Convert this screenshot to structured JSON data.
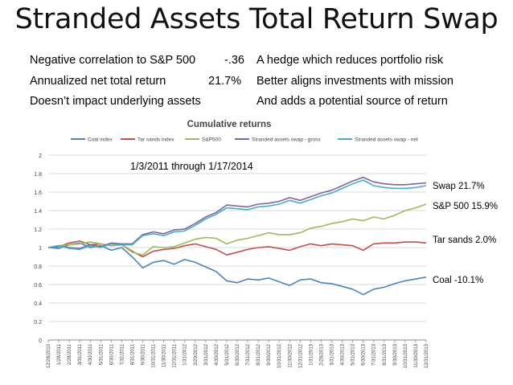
{
  "slide": {
    "title": "Stranded Assets Total Return Swap",
    "left_points": [
      {
        "label": "Negative correlation to S&P 500",
        "value": "-.36"
      },
      {
        "label": "Annualized net total return",
        "value": "21.7%"
      },
      {
        "label": "Doesn’t impact underlying assets",
        "value": ""
      }
    ],
    "right_points": [
      "A hedge  which reduces portfolio risk",
      "Better aligns investments with mission",
      "And adds a potential source of return"
    ],
    "period_label": "1/3/2011  through 1/17/2014",
    "annotations": [
      "Swap 21.7%",
      "S&P 500  15.9%",
      "Tar sands  2.0%",
      "Coal  -10.1%"
    ]
  },
  "chart_data": {
    "type": "line",
    "title": "Cumulative returns",
    "ylim": [
      0,
      2
    ],
    "yticks": [
      "0",
      "0.2",
      "0.4",
      "0.6",
      "0.8",
      "1",
      "1.2",
      "1.4",
      "1.6",
      "1.8",
      "2"
    ],
    "x": [
      "12/28/2010",
      "1/28/2011",
      "2/28/2011",
      "3/31/2011",
      "4/30/2011",
      "5/31/2011",
      "6/30/2011",
      "7/31/2011",
      "8/31/2011",
      "9/30/2011",
      "10/31/2011",
      "11/30/2011",
      "12/31/2011",
      "1/31/2012",
      "2/29/2012",
      "3/31/2012",
      "4/30/2012",
      "5/31/2012",
      "6/30/2012",
      "7/31/2012",
      "8/31/2012",
      "9/30/2012",
      "10/31/2012",
      "11/30/2012",
      "12/31/2012",
      "1/31/2013",
      "2/28/2013",
      "3/31/2013",
      "4/30/2013",
      "5/31/2013",
      "6/30/2013",
      "7/31/2013",
      "8/31/2013",
      "9/30/2013",
      "10/31/2013",
      "11/30/2013",
      "12/31/2013"
    ],
    "grid": true,
    "legend": "top",
    "series": [
      {
        "name": "Coal index",
        "color": "#4f81bd",
        "values": [
          1.0,
          0.99,
          1.03,
          1.05,
          1.0,
          1.02,
          0.97,
          1.0,
          0.9,
          0.78,
          0.84,
          0.86,
          0.82,
          0.87,
          0.84,
          0.79,
          0.74,
          0.64,
          0.62,
          0.66,
          0.65,
          0.67,
          0.63,
          0.59,
          0.65,
          0.66,
          0.62,
          0.61,
          0.58,
          0.55,
          0.49,
          0.55,
          0.57,
          0.61,
          0.64,
          0.66,
          0.68
        ]
      },
      {
        "name": "Tar sands index",
        "color": "#c0504d",
        "values": [
          1.0,
          1.01,
          1.05,
          1.07,
          1.03,
          1.04,
          1.02,
          1.03,
          0.96,
          0.9,
          0.96,
          0.98,
          0.99,
          1.02,
          1.04,
          1.01,
          0.98,
          0.92,
          0.95,
          0.98,
          1.0,
          1.01,
          0.99,
          0.97,
          1.01,
          1.04,
          1.02,
          1.04,
          1.03,
          1.02,
          0.97,
          1.04,
          1.05,
          1.05,
          1.06,
          1.06,
          1.05
        ]
      },
      {
        "name": "S&P500",
        "color": "#9bbb59",
        "values": [
          1.0,
          1.02,
          1.03,
          1.04,
          1.06,
          1.04,
          1.02,
          1.03,
          0.95,
          0.92,
          1.01,
          1.0,
          1.01,
          1.05,
          1.09,
          1.11,
          1.1,
          1.04,
          1.08,
          1.1,
          1.13,
          1.16,
          1.14,
          1.14,
          1.16,
          1.21,
          1.23,
          1.26,
          1.28,
          1.31,
          1.29,
          1.33,
          1.31,
          1.35,
          1.4,
          1.43,
          1.47
        ]
      },
      {
        "name": "Stranded assets swap - gross",
        "color": "#8064a2",
        "values": [
          1.0,
          1.02,
          1.0,
          0.99,
          1.03,
          1.01,
          1.05,
          1.04,
          1.04,
          1.14,
          1.17,
          1.15,
          1.19,
          1.2,
          1.26,
          1.33,
          1.38,
          1.46,
          1.45,
          1.44,
          1.47,
          1.48,
          1.5,
          1.54,
          1.51,
          1.55,
          1.59,
          1.62,
          1.67,
          1.72,
          1.76,
          1.71,
          1.69,
          1.68,
          1.68,
          1.69,
          1.7
        ]
      },
      {
        "name": "Stranded assets swap - net",
        "color": "#4bacc6",
        "values": [
          1.0,
          1.02,
          0.99,
          0.98,
          1.02,
          1.0,
          1.04,
          1.03,
          1.03,
          1.13,
          1.15,
          1.13,
          1.17,
          1.18,
          1.24,
          1.31,
          1.36,
          1.43,
          1.42,
          1.41,
          1.44,
          1.45,
          1.47,
          1.51,
          1.48,
          1.52,
          1.56,
          1.59,
          1.64,
          1.69,
          1.73,
          1.67,
          1.65,
          1.64,
          1.64,
          1.65,
          1.67
        ]
      }
    ],
    "annotations": [
      {
        "text": "Swap 21.7%",
        "y": 1.7
      },
      {
        "text": "S&P 500  15.9%",
        "y": 1.47
      },
      {
        "text": "Tar sands  2.0%",
        "y": 1.05
      },
      {
        "text": "Coal  -10.1%",
        "y": 0.68
      }
    ]
  }
}
